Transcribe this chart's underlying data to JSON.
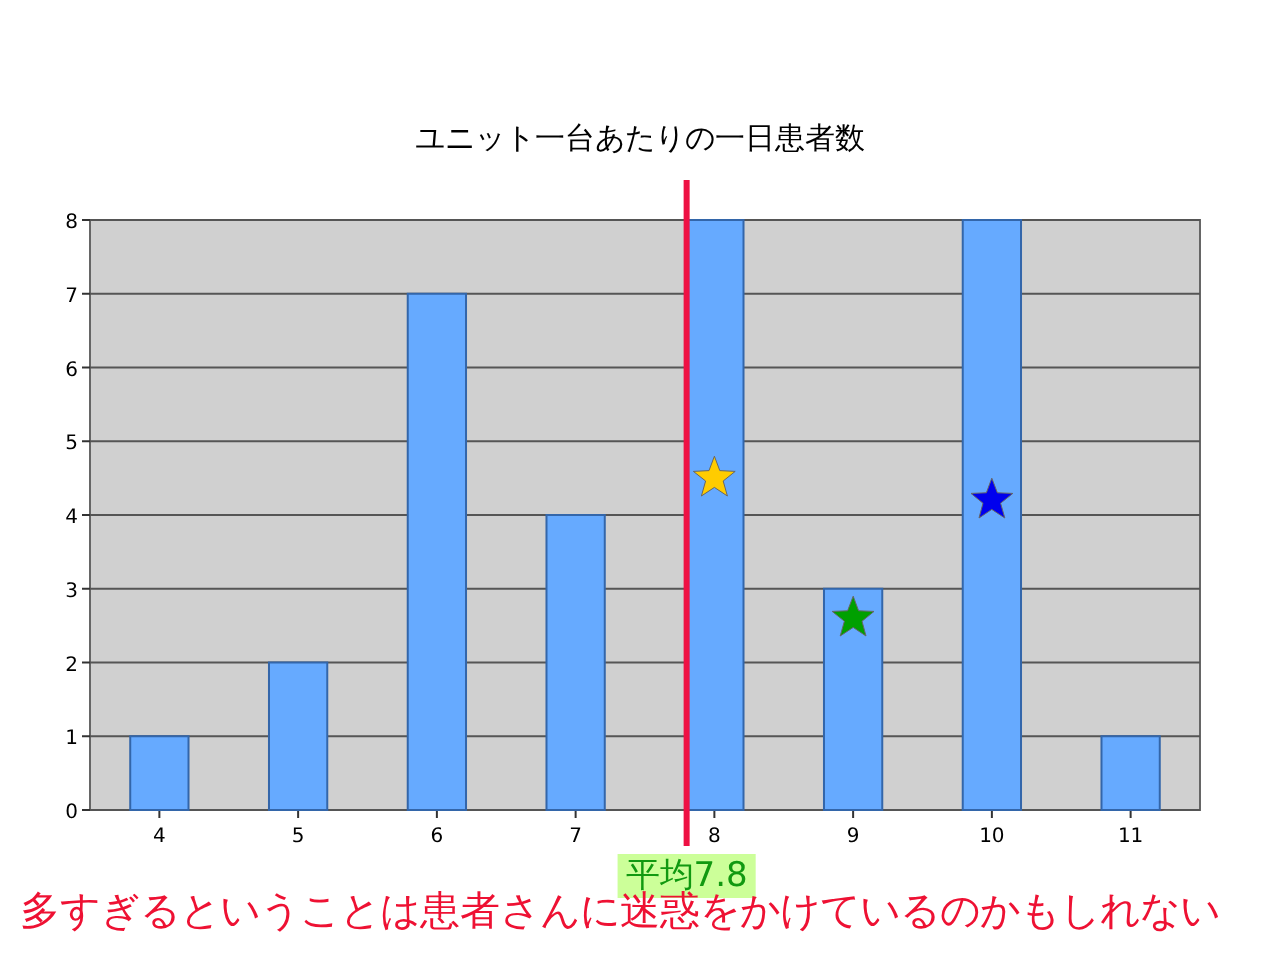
{
  "chart_data": {
    "type": "bar",
    "title": "ユニット一台あたりの一日患者数",
    "x": [
      4,
      5,
      6,
      7,
      8,
      9,
      10,
      11
    ],
    "values": [
      1,
      2,
      7,
      4,
      8,
      3,
      8,
      1
    ],
    "color": "#66aaff",
    "xlim": [
      3.5,
      11.5
    ],
    "xticks": [
      4,
      5,
      6,
      7,
      8,
      9,
      10,
      11
    ],
    "ylim": [
      0,
      8
    ],
    "yticks": [
      0,
      1,
      2,
      3,
      4,
      5,
      6,
      7,
      8
    ],
    "grid": "y",
    "series": [
      {
        "type": "scatter",
        "marker": "star",
        "color": "#ffcc00",
        "x": [
          8
        ],
        "values": [
          4.5
        ]
      },
      {
        "type": "scatter",
        "marker": "star",
        "color": "#00a000",
        "x": [
          9
        ],
        "values": [
          2.6
        ]
      },
      {
        "type": "scatter",
        "marker": "star",
        "color": "#0000ee",
        "x": [
          10
        ],
        "values": [
          4.2
        ]
      }
    ],
    "ref_lines": [
      {
        "axis": "x",
        "value": 7.8,
        "label": "平均7.8",
        "color": "#ee1144"
      }
    ],
    "annotations": [
      "多すぎるということは患者さんに迷惑をかけているのかもしれない"
    ]
  }
}
